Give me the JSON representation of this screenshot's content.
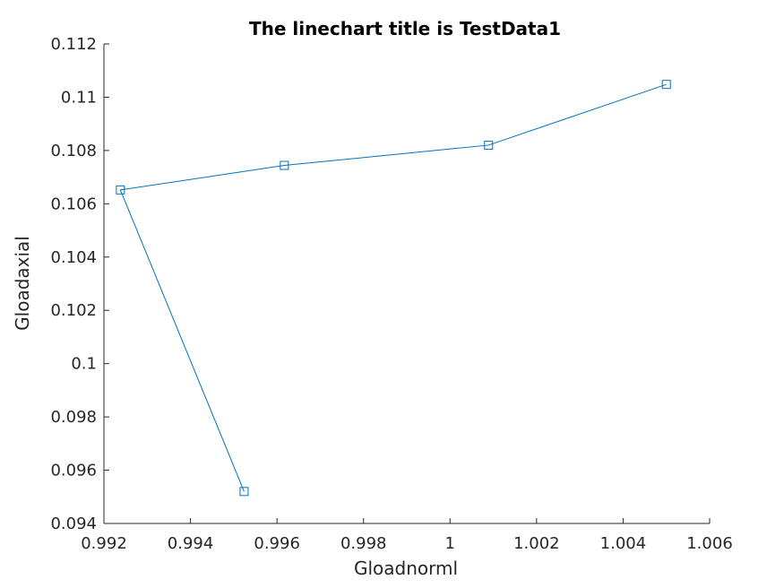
{
  "chart_data": {
    "type": "line",
    "title": "The linechart title is TestData1",
    "xlabel": "Gloadnorml",
    "ylabel": "Gloadaxial",
    "xlim": [
      0.992,
      1.006
    ],
    "ylim": [
      0.094,
      0.112
    ],
    "xticks": [
      0.992,
      0.994,
      0.996,
      0.998,
      1,
      1.002,
      1.004,
      1.006
    ],
    "xtick_labels": [
      "0.992",
      "0.994",
      "0.996",
      "0.998",
      "1",
      "1.002",
      "1.004",
      "1.006"
    ],
    "yticks": [
      0.094,
      0.096,
      0.098,
      0.1,
      0.102,
      0.104,
      0.106,
      0.108,
      0.11,
      0.112
    ],
    "ytick_labels": [
      "0.094",
      "0.096",
      "0.098",
      "0.1",
      "0.102",
      "0.104",
      "0.106",
      "0.108",
      "0.11",
      "0.112"
    ],
    "grid": false,
    "series": [
      {
        "color": "#0072bd",
        "marker": "square",
        "x": [
          0.99524,
          0.99238,
          0.99617,
          1.00089,
          1.005
        ],
        "y": [
          0.0952,
          0.10652,
          0.10744,
          0.1082,
          0.11048
        ]
      }
    ]
  }
}
